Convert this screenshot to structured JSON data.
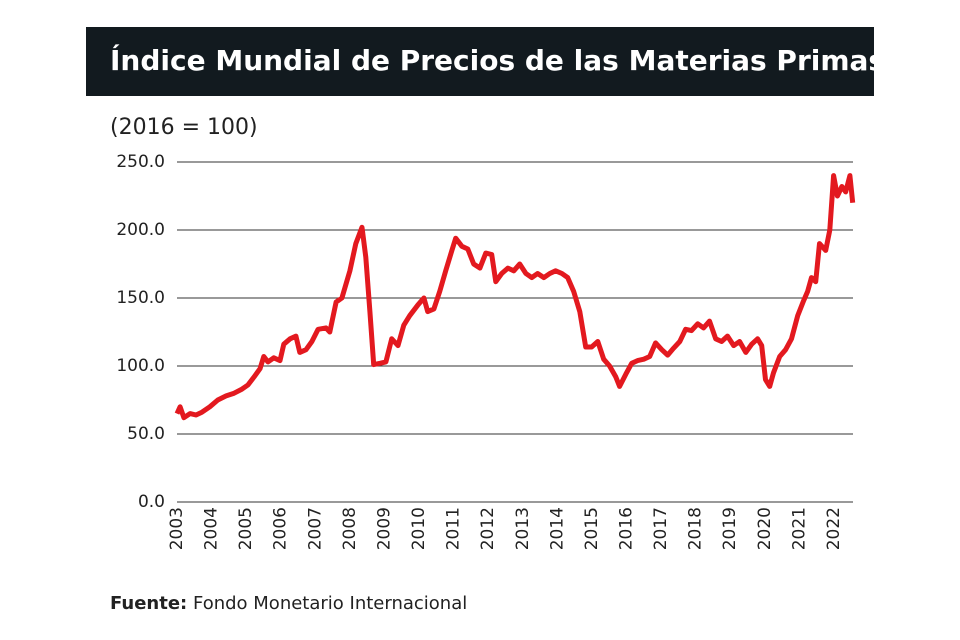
{
  "chart_data": {
    "type": "line",
    "title": "Índice Mundial de Precios de las Materias Primas",
    "subtitle": "(2016 = 100)",
    "source_label": "Fuente:",
    "source": "Fondo Monetario Internacional",
    "x": [
      2003.0,
      2003.09,
      2003.2,
      2003.38,
      2003.55,
      2003.72,
      2003.95,
      2004.18,
      2004.42,
      2004.65,
      2004.88,
      2005.05,
      2005.23,
      2005.4,
      2005.51,
      2005.63,
      2005.8,
      2005.98,
      2006.09,
      2006.27,
      2006.44,
      2006.55,
      2006.73,
      2006.9,
      2007.08,
      2007.31,
      2007.42,
      2007.6,
      2007.77,
      2008.0,
      2008.17,
      2008.35,
      2008.46,
      2008.58,
      2008.69,
      2008.87,
      2009.04,
      2009.21,
      2009.39,
      2009.56,
      2009.73,
      2009.97,
      2010.14,
      2010.25,
      2010.43,
      2010.6,
      2010.77,
      2010.95,
      2011.06,
      2011.24,
      2011.41,
      2011.58,
      2011.76,
      2011.93,
      2012.1,
      2012.22,
      2012.39,
      2012.57,
      2012.74,
      2012.91,
      2013.09,
      2013.26,
      2013.43,
      2013.61,
      2013.78,
      2013.95,
      2014.13,
      2014.3,
      2014.47,
      2014.65,
      2014.82,
      2014.99,
      2015.17,
      2015.34,
      2015.51,
      2015.69,
      2015.8,
      2015.98,
      2016.15,
      2016.32,
      2016.5,
      2016.67,
      2016.84,
      2017.02,
      2017.19,
      2017.36,
      2017.54,
      2017.71,
      2017.88,
      2018.06,
      2018.23,
      2018.4,
      2018.58,
      2018.75,
      2018.92,
      2019.1,
      2019.27,
      2019.45,
      2019.62,
      2019.79,
      2019.91,
      2020.02,
      2020.14,
      2020.25,
      2020.43,
      2020.6,
      2020.77,
      2020.95,
      2021.12,
      2021.24,
      2021.35,
      2021.47,
      2021.58,
      2021.76,
      2021.88,
      2021.99,
      2022.1,
      2022.23,
      2022.34,
      2022.46,
      2022.54
    ],
    "series": [
      {
        "color": "#e3191f",
        "values": [
          65,
          70,
          62,
          65,
          64,
          66,
          70,
          75,
          78,
          80,
          83,
          86,
          92,
          98,
          107,
          103,
          106,
          104,
          116,
          120,
          122,
          110,
          112,
          118,
          127,
          128,
          125,
          147,
          150,
          170,
          190,
          202,
          180,
          140,
          101,
          102,
          103,
          120,
          115,
          130,
          137,
          145,
          150,
          140,
          142,
          155,
          170,
          185,
          194,
          188,
          186,
          175,
          172,
          183,
          182,
          162,
          168,
          172,
          170,
          175,
          168,
          165,
          168,
          165,
          168,
          170,
          168,
          165,
          155,
          140,
          114,
          114,
          118,
          105,
          100,
          92,
          85,
          94,
          102,
          104,
          105,
          107,
          117,
          112,
          108,
          113,
          118,
          127,
          126,
          131,
          128,
          133,
          120,
          118,
          122,
          115,
          118,
          110,
          116,
          120,
          115,
          90,
          85,
          95,
          107,
          112,
          120,
          137,
          148,
          155,
          165,
          162,
          190,
          185,
          200,
          240,
          225,
          232,
          228,
          240,
          220
        ]
      }
    ],
    "xlim": [
      2003,
      2022.55
    ],
    "xticks": [
      2003,
      2004,
      2005,
      2006,
      2007,
      2008,
      2009,
      2010,
      2011,
      2012,
      2013,
      2014,
      2015,
      2016,
      2017,
      2018,
      2019,
      2020,
      2021,
      2022
    ],
    "ylim": [
      0,
      250
    ],
    "yticks": [
      {
        "value": 0,
        "label": "0.0"
      },
      {
        "value": 50,
        "label": "50.0"
      },
      {
        "value": 100,
        "label": "100.0"
      },
      {
        "value": 150,
        "label": "150.0"
      },
      {
        "value": 200,
        "label": "200.0"
      },
      {
        "value": 250,
        "label": "250.0"
      }
    ],
    "grid": true
  }
}
